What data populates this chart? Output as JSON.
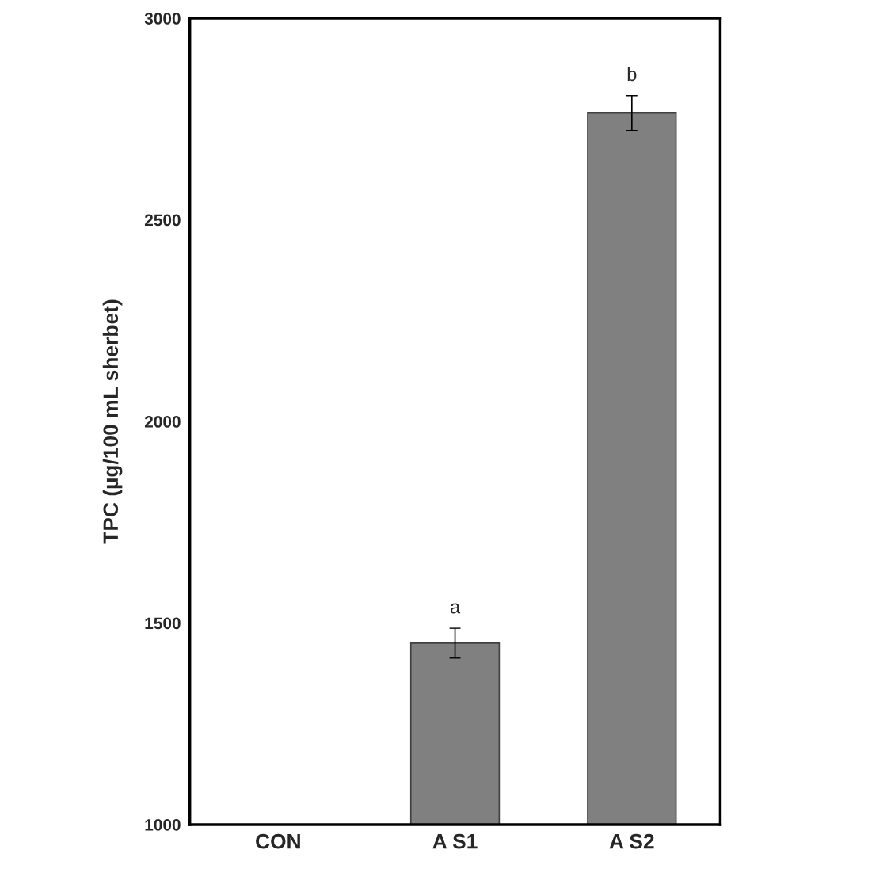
{
  "chart_data": {
    "type": "bar",
    "ylabel": "TPC (µg/100 mL sherbet)",
    "categories": [
      "CON",
      "A S1",
      "A S2"
    ],
    "series": [
      {
        "color": "#808080",
        "values": [
          null,
          1450,
          2765
        ],
        "errors": [
          null,
          37,
          43
        ]
      }
    ],
    "ylim": [
      1000,
      3000
    ],
    "yticks": [
      1000,
      1500,
      2000,
      2500,
      3000
    ],
    "annotations": [
      "a",
      "b"
    ],
    "grid": false,
    "legend": false
  }
}
